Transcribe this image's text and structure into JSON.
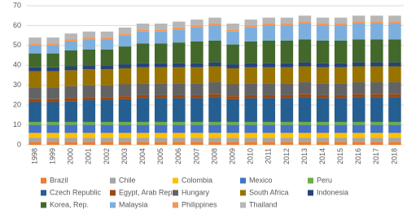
{
  "chart_data": {
    "type": "stacked-bar",
    "categories": [
      "1998",
      "1999",
      "2000",
      "2001",
      "2002",
      "2003",
      "2004",
      "2005",
      "2006",
      "2007",
      "2008",
      "2009",
      "2010",
      "2011",
      "2012",
      "2013",
      "2014",
      "2015",
      "2016",
      "2017",
      "2018"
    ],
    "ylim": [
      0,
      70
    ],
    "yticks": [
      0,
      10,
      20,
      30,
      40,
      50,
      60,
      70
    ],
    "grid": true,
    "legend": "bottom",
    "series": [
      {
        "name": "Brazil",
        "color": "#ed7d31",
        "values": [
          1.5,
          1.5,
          1.5,
          1.5,
          1.5,
          1.5,
          1.5,
          1.5,
          1.5,
          1.5,
          1.5,
          1.5,
          1.5,
          1.5,
          1.5,
          1.5,
          1.5,
          1.5,
          1.5,
          1.5,
          1.5
        ]
      },
      {
        "name": "Chile",
        "color": "#a5a5a5",
        "values": [
          2,
          2,
          2,
          2,
          2,
          2,
          2,
          2,
          2,
          2,
          2,
          2,
          2,
          2,
          2,
          2,
          2,
          2,
          2,
          2,
          2
        ]
      },
      {
        "name": "Colombia",
        "color": "#ffc000",
        "values": [
          2.5,
          2.5,
          2.5,
          2.5,
          2.5,
          2.5,
          2.5,
          2.5,
          2.5,
          2.5,
          2.5,
          2.5,
          2.5,
          2.5,
          2.5,
          2.5,
          2.5,
          2.5,
          2.5,
          2.5,
          2.5
        ]
      },
      {
        "name": "Mexico",
        "color": "#4472c4",
        "values": [
          4,
          4,
          4,
          4,
          4,
          4,
          4,
          4,
          4,
          4,
          4,
          4,
          4,
          4,
          4,
          4,
          4,
          4,
          4,
          4,
          4
        ]
      },
      {
        "name": "Peru",
        "color": "#70ad47",
        "values": [
          1.5,
          1.5,
          1.5,
          1.5,
          1.5,
          1.5,
          1.5,
          1.5,
          1.5,
          1.5,
          1.5,
          1.5,
          1.5,
          1.5,
          1.5,
          1.5,
          1.5,
          1.5,
          1.5,
          1.5,
          1.5
        ]
      },
      {
        "name": "Czech Republic",
        "color": "#255e91",
        "values": [
          10,
          10,
          10.5,
          11,
          11,
          11.5,
          12,
          12,
          12,
          12,
          12.5,
          11.5,
          12,
          12,
          12,
          12.5,
          12,
          12,
          12.5,
          12.5,
          12.5
        ]
      },
      {
        "name": "Egypt, Arab Rep.",
        "color": "#9e480e",
        "values": [
          1.5,
          1.5,
          1.5,
          1.5,
          1.5,
          1.5,
          1.5,
          1.5,
          1.5,
          1.5,
          1.5,
          1.5,
          1.5,
          1.5,
          1.5,
          1.5,
          1.5,
          1.5,
          1.5,
          1.5,
          1.5
        ]
      },
      {
        "name": "Hungary",
        "color": "#636363",
        "values": [
          6,
          6,
          6,
          6,
          6,
          6,
          6,
          6,
          6,
          6,
          6,
          6,
          6,
          6,
          6,
          6,
          6,
          6,
          6,
          6,
          6
        ]
      },
      {
        "name": "South Africa",
        "color": "#997300",
        "values": [
          8,
          8,
          8,
          8,
          8,
          8,
          8,
          8,
          8,
          8,
          8,
          8,
          8,
          8,
          8,
          8,
          8,
          8,
          8,
          8,
          8
        ]
      },
      {
        "name": "Indonesia",
        "color": "#264478",
        "values": [
          2,
          2,
          2,
          2,
          2,
          2,
          2,
          2,
          2,
          2,
          2,
          2,
          2,
          2,
          2,
          2,
          2,
          2,
          2,
          2,
          2
        ]
      },
      {
        "name": "Korea, Rep.",
        "color": "#43682b",
        "values": [
          7,
          7,
          8,
          8,
          8,
          9,
          10,
          10,
          10.5,
          11,
          11,
          10,
          11,
          11.5,
          11.5,
          11.5,
          11.5,
          11.5,
          11.5,
          11.5,
          11.5
        ]
      },
      {
        "name": "Malaysia",
        "color": "#7cafdd",
        "values": [
          4,
          4,
          4.5,
          5,
          5,
          5.5,
          6,
          6,
          6.5,
          7,
          7.5,
          6.5,
          7,
          7.5,
          7.5,
          8,
          7.5,
          7.5,
          8,
          8,
          8
        ]
      },
      {
        "name": "Philippines",
        "color": "#f1975a",
        "values": [
          1,
          1,
          1,
          1,
          1,
          1,
          1,
          1,
          1,
          1,
          1,
          1,
          1,
          1,
          1,
          1,
          1,
          1,
          1,
          1,
          1
        ]
      },
      {
        "name": "Thailand",
        "color": "#b7b7b7",
        "values": [
          3,
          3,
          3,
          3,
          3,
          3,
          3,
          3,
          3,
          3,
          3,
          3,
          3,
          3,
          3,
          3,
          3,
          3,
          3,
          3,
          3
        ]
      }
    ]
  }
}
